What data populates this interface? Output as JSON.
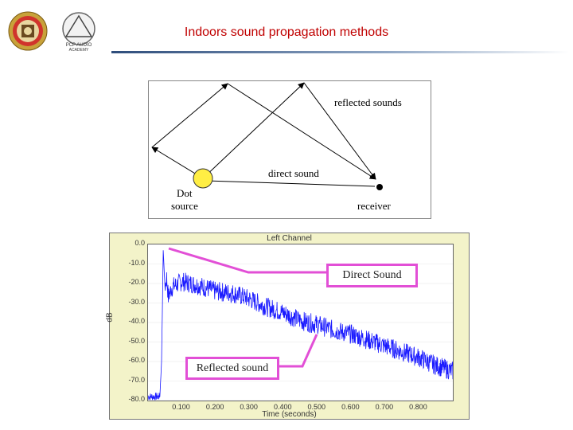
{
  "title": "Indoors sound propagation methods",
  "logos": {
    "left": "university-seal",
    "right": "pcp-audio-logo",
    "right_text_1": "PCP AUDIO",
    "right_text_2": "ACADEMY"
  },
  "diagram": {
    "reflected_label": "reflected sounds",
    "direct_label": "direct sound",
    "source_label_1": "Dot",
    "source_label_2": "source",
    "receiver_label": "receiver",
    "source_color": "#ffee44"
  },
  "chart_data": {
    "type": "line",
    "title": "Left Channel",
    "xlabel": "Time (seconds)",
    "ylabel": "dB",
    "xlim": [
      0.0,
      0.9
    ],
    "ylim": [
      -80,
      0
    ],
    "x_ticks": [
      "0.100",
      "0.200",
      "0.300",
      "0.400",
      "0.500",
      "0.600",
      "0.700",
      "0.800"
    ],
    "y_ticks": [
      "0.0",
      "-10.0",
      "-20.0",
      "-30.0",
      "-40.0",
      "-50.0",
      "-60.0",
      "-70.0",
      "-80.0"
    ],
    "series": [
      {
        "color": "#1a1aff",
        "points": [
          [
            0.0,
            -78
          ],
          [
            0.035,
            -78
          ],
          [
            0.04,
            -60
          ],
          [
            0.045,
            -3
          ],
          [
            0.05,
            -22
          ],
          [
            0.055,
            -17
          ],
          [
            0.06,
            -27
          ],
          [
            0.07,
            -22
          ],
          [
            0.1,
            -19
          ],
          [
            0.15,
            -21
          ],
          [
            0.2,
            -24
          ],
          [
            0.25,
            -25
          ],
          [
            0.3,
            -28
          ],
          [
            0.35,
            -32
          ],
          [
            0.4,
            -35
          ],
          [
            0.45,
            -39
          ],
          [
            0.5,
            -41
          ],
          [
            0.55,
            -44
          ],
          [
            0.6,
            -46
          ],
          [
            0.65,
            -49
          ],
          [
            0.7,
            -52
          ],
          [
            0.75,
            -55
          ],
          [
            0.8,
            -58
          ],
          [
            0.85,
            -62
          ],
          [
            0.9,
            -65
          ]
        ]
      }
    ],
    "annotations": [
      "Direct Sound",
      "Reflected sound"
    ],
    "annotation_color": "#e24fd6"
  }
}
